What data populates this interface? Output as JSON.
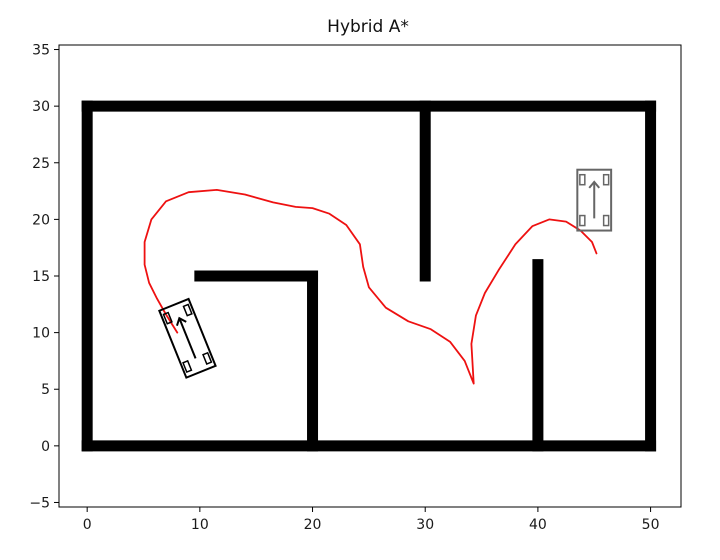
{
  "chart_data": {
    "type": "line",
    "title": "Hybrid A*",
    "xlabel": "",
    "ylabel": "",
    "xlim": [
      -2.5,
      52.7
    ],
    "ylim": [
      -5.4,
      35.4
    ],
    "xticks": [
      0,
      10,
      20,
      30,
      40,
      50
    ],
    "yticks": [
      -5,
      0,
      5,
      10,
      15,
      20,
      25,
      30,
      35
    ],
    "grid": false,
    "colors": {
      "obstacle": "#000000",
      "path": "#ee1111",
      "start_vehicle": "#000000",
      "goal_vehicle": "#666666"
    },
    "obstacles": [
      {
        "name": "outer-wall-bottom",
        "x": [
          0,
          50
        ],
        "y": [
          0,
          0
        ]
      },
      {
        "name": "outer-wall-top",
        "x": [
          0,
          50
        ],
        "y": [
          30,
          30
        ]
      },
      {
        "name": "outer-wall-left",
        "x": [
          0,
          0
        ],
        "y": [
          0,
          30
        ]
      },
      {
        "name": "outer-wall-right",
        "x": [
          50,
          50
        ],
        "y": [
          0,
          30
        ]
      },
      {
        "name": "inner-wall-horizontal",
        "x": [
          10,
          20
        ],
        "y": [
          15,
          15
        ]
      },
      {
        "name": "inner-wall-lower-vertical",
        "x": [
          20,
          20
        ],
        "y": [
          0,
          15
        ]
      },
      {
        "name": "inner-wall-upper-vertical",
        "x": [
          30,
          30
        ],
        "y": [
          15,
          30
        ]
      },
      {
        "name": "inner-wall-right-vertical",
        "x": [
          40,
          40
        ],
        "y": [
          0,
          16
        ]
      }
    ],
    "path": {
      "x": [
        8.0,
        7.0,
        6.2,
        5.5,
        5.1,
        5.1,
        5.7,
        7.0,
        9.0,
        11.5,
        14.0,
        16.5,
        18.5,
        20.0,
        21.5,
        23.0,
        24.2,
        24.5,
        25.0,
        26.5,
        28.5,
        30.5,
        32.2,
        33.5,
        34.3,
        34.1,
        34.5,
        35.3,
        36.5,
        38.0,
        39.5,
        41.0,
        42.5,
        43.8,
        44.8,
        45.2
      ],
      "y": [
        10.0,
        11.6,
        13.0,
        14.4,
        16.0,
        18.0,
        20.0,
        21.6,
        22.4,
        22.6,
        22.2,
        21.5,
        21.1,
        21.0,
        20.5,
        19.5,
        17.8,
        15.8,
        14.0,
        12.2,
        11.0,
        10.3,
        9.2,
        7.5,
        5.5,
        9.0,
        11.5,
        13.5,
        15.5,
        17.8,
        19.4,
        20.0,
        19.8,
        19.0,
        18.0,
        17.0
      ]
    },
    "start_vehicle": {
      "x": 8.9,
      "y": 9.5,
      "heading_deg": 112,
      "length": 6.4,
      "width": 2.8
    },
    "goal_vehicle": {
      "x": 45.0,
      "y": 21.7,
      "heading_deg": 90,
      "length": 5.4,
      "width": 3.0
    }
  }
}
